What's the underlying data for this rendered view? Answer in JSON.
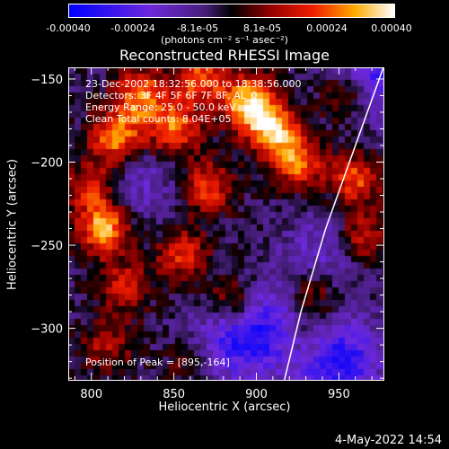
{
  "colorbar": {
    "tick_labels": [
      "-0.00040",
      "-0.00024",
      "-8.1e-05",
      "8.1e-05",
      "0.00024",
      "0.00040"
    ],
    "units_label": "(photons cm⁻² s⁻¹ asec⁻²)"
  },
  "info": {
    "time": "23-Dec-2002 18:32:56.000 to 18:38:56.000",
    "detectors": "Detectors: 3F 4F 5F 6F 7F 8F, AL_0",
    "energy": "Energy Range: 25.0 - 50.0 keV",
    "method": "Clean     Total counts: 8.04E+05",
    "peak": "Position of Peak = [895,-164]"
  },
  "footer": {
    "timestamp": "4-May-2022 14:54"
  },
  "chart_data": {
    "type": "heatmap",
    "title": "Reconstructed RHESSI Image",
    "xlabel": "Heliocentric X (arcsec)",
    "ylabel": "Heliocentric Y (arcsec)",
    "xlim": [
      786,
      977
    ],
    "ylim": [
      -331,
      -143
    ],
    "x_ticks": [
      800,
      850,
      900,
      950
    ],
    "y_ticks": [
      -150,
      -200,
      -250,
      -300
    ],
    "colorscale_range": [
      -0.0004,
      0.0004
    ],
    "peak_position": [
      895,
      -164
    ],
    "limb_curve": [
      [
        977,
        -143
      ],
      [
        960,
        -190
      ],
      [
        942,
        -240
      ],
      [
        927,
        -290
      ],
      [
        917,
        -331
      ]
    ],
    "bright_sources": [
      {
        "x": 830,
        "y": -160,
        "value": 0.00032
      },
      {
        "x": 815,
        "y": -185,
        "value": 0.00034
      },
      {
        "x": 850,
        "y": -180,
        "value": 0.0003
      },
      {
        "x": 895,
        "y": -164,
        "value": 0.0004
      },
      {
        "x": 910,
        "y": -180,
        "value": 0.00036
      },
      {
        "x": 925,
        "y": -200,
        "value": 0.0003
      },
      {
        "x": 865,
        "y": -150,
        "value": 0.00028
      },
      {
        "x": 800,
        "y": -215,
        "value": 0.00022
      },
      {
        "x": 808,
        "y": -240,
        "value": 0.00038
      },
      {
        "x": 870,
        "y": -215,
        "value": 0.00026
      },
      {
        "x": 855,
        "y": -255,
        "value": 0.00024
      },
      {
        "x": 820,
        "y": -275,
        "value": 0.0002
      },
      {
        "x": 885,
        "y": -285,
        "value": 0.00022
      },
      {
        "x": 960,
        "y": -210,
        "value": 0.00026
      },
      {
        "x": 965,
        "y": -245,
        "value": 0.00022
      },
      {
        "x": 935,
        "y": -280,
        "value": 0.00018
      },
      {
        "x": 810,
        "y": -310,
        "value": 0.00016
      },
      {
        "x": 860,
        "y": -320,
        "value": 0.00014
      },
      {
        "x": 955,
        "y": -160,
        "value": 0.00024
      },
      {
        "x": 930,
        "y": -305,
        "value": 0.00012
      }
    ],
    "dark_sources": [
      {
        "x": 905,
        "y": -300,
        "value": -0.00024
      },
      {
        "x": 950,
        "y": -320,
        "value": -0.0003
      },
      {
        "x": 880,
        "y": -310,
        "value": -0.00018
      },
      {
        "x": 970,
        "y": -150,
        "value": -0.00026
      },
      {
        "x": 830,
        "y": -215,
        "value": -0.00012
      },
      {
        "x": 940,
        "y": -255,
        "value": -0.00014
      }
    ]
  }
}
